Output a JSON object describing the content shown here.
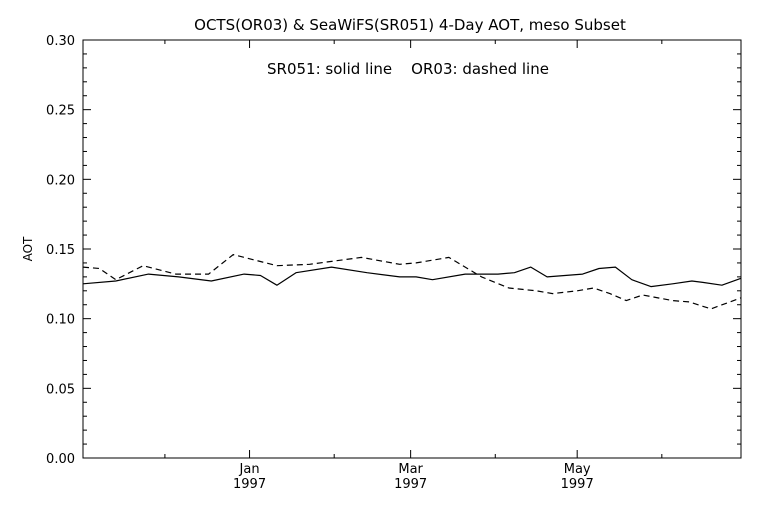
{
  "chart_data": {
    "type": "line",
    "title": "OCTS(OR03) & SeaWiFS(SR051) 4-Day AOT, meso Subset",
    "annotation": "SR051: solid line    OR03: dashed line",
    "xlabel": "",
    "ylabel": "AOT",
    "ylim": [
      0.0,
      0.3
    ],
    "yticks": [
      "0.00",
      "0.05",
      "0.10",
      "0.15",
      "0.20",
      "0.25",
      "0.30"
    ],
    "xlim": [
      "1996-11-01",
      "1997-06-30"
    ],
    "xticks": [
      {
        "date": "1997-01-01",
        "month": "Jan",
        "year": "1997"
      },
      {
        "date": "1997-03-01",
        "month": "Mar",
        "year": "1997"
      },
      {
        "date": "1997-05-01",
        "month": "May",
        "year": "1997"
      }
    ],
    "grid": false,
    "legend": "none",
    "series": [
      {
        "name": "SR051",
        "style": "solid",
        "color": "#000000",
        "x": [
          "1996-11-01",
          "1996-11-13",
          "1996-11-25",
          "1996-12-06",
          "1996-12-18",
          "1996-12-30",
          "1997-01-05",
          "1997-01-11",
          "1997-01-18",
          "1997-01-31",
          "1997-02-13",
          "1997-02-25",
          "1997-03-03",
          "1997-03-09",
          "1997-03-21",
          "1997-04-02",
          "1997-04-08",
          "1997-04-14",
          "1997-04-20",
          "1997-05-03",
          "1997-05-09",
          "1997-05-15",
          "1997-05-21",
          "1997-05-28",
          "1997-06-05",
          "1997-06-12",
          "1997-06-16",
          "1997-06-23",
          "1997-06-30"
        ],
        "values": [
          0.125,
          0.127,
          0.132,
          0.13,
          0.127,
          0.132,
          0.131,
          0.124,
          0.133,
          0.137,
          0.133,
          0.13,
          0.13,
          0.128,
          0.132,
          0.132,
          0.133,
          0.137,
          0.13,
          0.132,
          0.136,
          0.137,
          0.128,
          0.123,
          0.125,
          0.127,
          0.126,
          0.124,
          0.129
        ]
      },
      {
        "name": "OR03",
        "style": "dashed",
        "color": "#000000",
        "x": [
          "1996-11-01",
          "1996-11-07",
          "1996-11-13",
          "1996-11-23",
          "1996-12-05",
          "1996-12-17",
          "1996-12-26",
          "1997-01-11",
          "1997-01-23",
          "1997-02-11",
          "1997-02-25",
          "1997-03-03",
          "1997-03-15",
          "1997-03-27",
          "1997-04-06",
          "1997-04-11",
          "1997-04-16",
          "1997-04-22",
          "1997-05-01",
          "1997-05-07",
          "1997-05-13",
          "1997-05-19",
          "1997-05-25",
          "1997-06-05",
          "1997-06-11",
          "1997-06-19",
          "1997-06-30"
        ],
        "values": [
          0.137,
          0.136,
          0.128,
          0.138,
          0.132,
          0.132,
          0.146,
          0.138,
          0.139,
          0.144,
          0.139,
          0.14,
          0.144,
          0.13,
          0.122,
          0.121,
          0.12,
          0.118,
          0.12,
          0.122,
          0.118,
          0.113,
          0.117,
          0.113,
          0.112,
          0.107,
          0.115
        ]
      }
    ]
  }
}
